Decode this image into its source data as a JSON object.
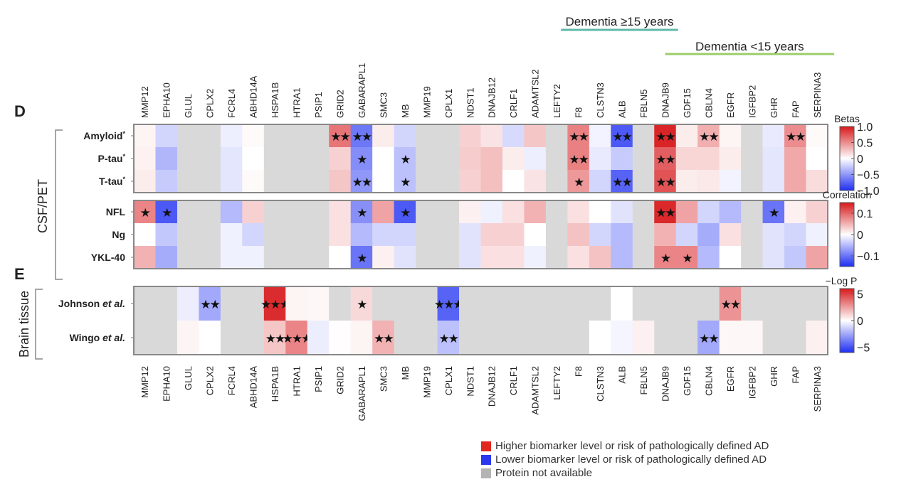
{
  "chart_data": {
    "type": "heatmap",
    "panels_labels": {
      "D": "D",
      "E": "E"
    },
    "columns": [
      "MMP12",
      "EPHA10",
      "GLUL",
      "CPLX2",
      "FCRL4",
      "ABHD14A",
      "HSPA1B",
      "HTRA1",
      "PSIP1",
      "GRID2",
      "GABARAPL1",
      "SMC3",
      "MB",
      "MMP19",
      "CPLX1",
      "NDST1",
      "DNAJB12",
      "CRLF1",
      "ADAMTSL2",
      "LEFTY2",
      "F8",
      "CLSTN3",
      "ALB",
      "FBLN5",
      "DNAJB9",
      "GDF15",
      "CBLN4",
      "EGFR",
      "IGFBP2",
      "GHR",
      "FAP",
      "SERPINA3"
    ],
    "annotations": [
      {
        "label": "Dementia ≥15 years",
        "from": "F8",
        "to": "DNAJB9",
        "color": "#5fb8a8"
      },
      {
        "label": "Dementia <15 years",
        "from": "DNAJB9",
        "to": "SERPINA3",
        "color": "#9ccc6a"
      }
    ],
    "group_labels": {
      "csf_pet": "CSF/PET",
      "brain": "Brain tissue"
    },
    "panels": [
      {
        "name": "betas",
        "colorbar_title": "Betas",
        "range": [
          -1.0,
          1.0
        ],
        "ticks": [
          "1.0",
          "0.5",
          "0",
          "−0.5",
          "−1.0"
        ],
        "tick_values": [
          1.0,
          0.5,
          0,
          -0.5,
          -1.0
        ],
        "rows": [
          {
            "label": "Amyloid",
            "sup": "*",
            "values": [
              0.05,
              -0.2,
              null,
              null,
              -0.08,
              0.02,
              null,
              null,
              null,
              0.6,
              -0.65,
              0.08,
              -0.2,
              null,
              null,
              0.2,
              0.12,
              -0.18,
              0.25,
              null,
              0.55,
              -0.06,
              -0.8,
              null,
              0.95,
              0.08,
              0.35,
              0.05,
              null,
              -0.1,
              0.5,
              0.02
            ],
            "stars": [
              "",
              "",
              "",
              "",
              "",
              "",
              "",
              "",
              "",
              "**",
              "**",
              "",
              "",
              "",
              "",
              "",
              "",
              "",
              "",
              "",
              "**",
              "",
              "**",
              "",
              "**",
              "",
              "**",
              "",
              "",
              "",
              "**",
              ""
            ]
          },
          {
            "label": "P-tau",
            "sup": "*",
            "values": [
              0.06,
              -0.35,
              null,
              null,
              -0.12,
              0.0,
              null,
              null,
              null,
              0.2,
              -0.55,
              0.0,
              -0.3,
              null,
              null,
              0.22,
              0.28,
              0.08,
              -0.08,
              null,
              0.55,
              -0.1,
              -0.25,
              null,
              0.7,
              0.18,
              0.18,
              0.08,
              null,
              -0.12,
              0.38,
              0.0
            ],
            "stars": [
              "",
              "",
              "",
              "",
              "",
              "",
              "",
              "",
              "",
              "",
              "*",
              "",
              "*",
              "",
              "",
              "",
              "",
              "",
              "",
              "",
              "**",
              "",
              "",
              "",
              "**",
              "",
              "",
              "",
              "",
              "",
              "",
              ""
            ]
          },
          {
            "label": "T-tau",
            "sup": "*",
            "values": [
              0.08,
              -0.25,
              null,
              null,
              -0.12,
              0.02,
              null,
              null,
              null,
              0.25,
              -0.5,
              0.0,
              -0.3,
              null,
              null,
              0.2,
              0.28,
              0.0,
              0.12,
              null,
              0.45,
              -0.2,
              -0.75,
              null,
              0.75,
              0.08,
              0.1,
              -0.06,
              null,
              -0.12,
              0.38,
              0.15
            ],
            "stars": [
              "",
              "",
              "",
              "",
              "",
              "",
              "",
              "",
              "",
              "",
              "**",
              "",
              "*",
              "",
              "",
              "",
              "",
              "",
              "",
              "",
              "*",
              "",
              "**",
              "",
              "**",
              "",
              "",
              "",
              "",
              "",
              "",
              ""
            ]
          }
        ]
      },
      {
        "name": "correlation",
        "colorbar_title": "Correlation",
        "range": [
          -0.15,
          0.15
        ],
        "ticks": [
          "0.1",
          "0",
          "−0.1"
        ],
        "tick_values": [
          0.1,
          0,
          -0.1
        ],
        "rows": [
          {
            "label": "NFL",
            "sup": "",
            "values": [
              0.08,
              -0.12,
              null,
              null,
              -0.05,
              0.03,
              null,
              null,
              null,
              0.02,
              -0.08,
              0.06,
              -0.12,
              null,
              null,
              0.01,
              -0.01,
              0.02,
              0.05,
              null,
              0.02,
              0.0,
              -0.02,
              null,
              0.14,
              0.06,
              -0.03,
              -0.05,
              null,
              -0.1,
              0.01,
              0.03
            ],
            "stars": [
              "*",
              "*",
              "",
              "",
              "",
              "",
              "",
              "",
              "",
              "",
              "*",
              "",
              "*",
              "",
              "",
              "",
              "",
              "",
              "",
              "",
              "",
              "",
              "",
              "",
              "**",
              "",
              "",
              "",
              "",
              "*",
              "",
              ""
            ]
          },
          {
            "label": "Ng",
            "sup": "",
            "values": [
              0.0,
              -0.04,
              null,
              null,
              -0.01,
              -0.03,
              null,
              null,
              null,
              0.02,
              -0.05,
              -0.03,
              -0.03,
              null,
              null,
              -0.02,
              0.03,
              0.03,
              0.0,
              null,
              0.04,
              -0.03,
              -0.05,
              null,
              0.05,
              -0.03,
              -0.06,
              0.02,
              null,
              -0.02,
              -0.03,
              -0.01
            ],
            "stars": [
              "",
              "",
              "",
              "",
              "",
              "",
              "",
              "",
              "",
              "",
              "",
              "",
              "",
              "",
              "",
              "",
              "",
              "",
              "",
              "",
              "",
              "",
              "",
              "",
              "",
              "",
              "",
              "",
              "",
              "",
              "",
              ""
            ]
          },
          {
            "label": "YKL-40",
            "sup": "",
            "values": [
              0.05,
              -0.06,
              null,
              null,
              -0.01,
              -0.01,
              null,
              null,
              null,
              0.0,
              -0.1,
              0.01,
              -0.02,
              null,
              null,
              -0.02,
              0.02,
              0.02,
              -0.01,
              null,
              0.02,
              0.04,
              -0.05,
              null,
              0.08,
              0.08,
              -0.05,
              0.0,
              null,
              -0.02,
              -0.04,
              0.06
            ],
            "stars": [
              "",
              "",
              "",
              "",
              "",
              "",
              "",
              "",
              "",
              "",
              "*",
              "",
              "",
              "",
              "",
              "",
              "",
              "",
              "",
              "",
              "",
              "",
              "",
              "",
              "*",
              "*",
              "",
              "",
              "",
              "",
              "",
              ""
            ]
          }
        ]
      },
      {
        "name": "neglogp",
        "colorbar_title": "−Log P",
        "range": [
          -6,
          6
        ],
        "ticks": [
          "5",
          "0",
          "−5"
        ],
        "tick_values": [
          5,
          0,
          -5
        ],
        "rows": [
          {
            "label": "Johnson",
            "italic_suffix": " et al.",
            "values": [
              null,
              null,
              -0.5,
              -2.5,
              null,
              null,
              5.5,
              0.3,
              0.2,
              null,
              1.0,
              null,
              null,
              null,
              -4.5,
              null,
              null,
              null,
              null,
              null,
              null,
              null,
              0.0,
              null,
              null,
              null,
              null,
              2.8,
              null,
              null,
              null,
              null
            ],
            "stars": [
              "",
              "",
              "",
              "**",
              "",
              "",
              "***",
              "",
              "",
              "",
              "*",
              "",
              "",
              "",
              "***",
              "",
              "",
              "",
              "",
              "",
              "",
              "",
              "",
              "",
              "",
              "",
              "",
              "**",
              "",
              "",
              "",
              ""
            ]
          },
          {
            "label": "Wingo",
            "italic_suffix": " et al.",
            "values": [
              null,
              null,
              0.3,
              0.0,
              null,
              null,
              1.5,
              3.2,
              -0.5,
              0.05,
              0.3,
              2.0,
              null,
              null,
              -1.8,
              null,
              null,
              null,
              null,
              null,
              null,
              0.0,
              -0.3,
              0.4,
              null,
              null,
              -2.5,
              0.2,
              0.2,
              null,
              null,
              0.4
            ],
            "stars": [
              "",
              "",
              "",
              "",
              "",
              "",
              "**",
              "***",
              "",
              "",
              "",
              "**",
              "",
              "",
              "**",
              "",
              "",
              "",
              "",
              "",
              "",
              "",
              "",
              "",
              "",
              "",
              "**",
              "",
              "",
              "",
              "",
              ""
            ]
          }
        ]
      }
    ]
  },
  "legend": [
    {
      "label": "Higher biomarker level or risk of pathologically defined AD",
      "color": "#e0281e"
    },
    {
      "label": "Lower biomarker level or risk of pathologically defined AD",
      "color": "#2b38f0"
    },
    {
      "label": "Protein not available",
      "color": "#b4b4b4"
    }
  ],
  "colors": {
    "na": "#d9d9d9",
    "high": "#d7191c",
    "low": "#1f2ff2",
    "mid": "#ffffff"
  }
}
